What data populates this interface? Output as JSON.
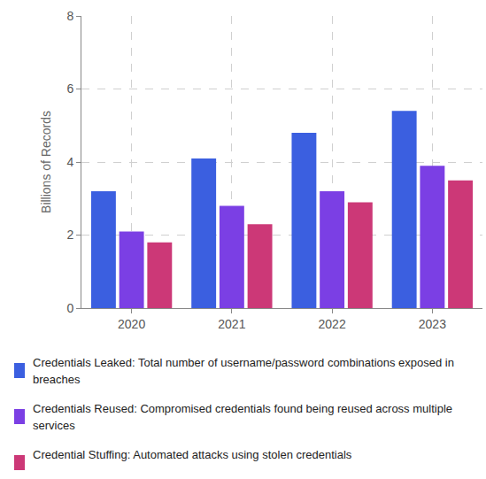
{
  "chart_data": {
    "type": "bar",
    "categories": [
      "2020",
      "2021",
      "2022",
      "2023"
    ],
    "y_label": "Billions of Records",
    "series": [
      {
        "name": "Credentials Leaked: Total number of username/password combinations exposed in breaches",
        "color": "#3b5fe0",
        "values": [
          3.2,
          4.1,
          4.8,
          5.4
        ]
      },
      {
        "name": "Credentials Reused: Compromised credentials found being reused across multiple services",
        "color": "#7b3fe4",
        "values": [
          2.1,
          2.8,
          3.2,
          3.9
        ]
      },
      {
        "name": "Credential Stuffing: Automated attacks using stolen credentials",
        "color": "#cc3877",
        "values": [
          1.8,
          2.3,
          2.9,
          3.5
        ]
      }
    ],
    "ylim": [
      0,
      8
    ],
    "yticks": [
      0,
      2,
      4,
      6,
      8
    ],
    "grid": true,
    "legend": "bottom"
  }
}
